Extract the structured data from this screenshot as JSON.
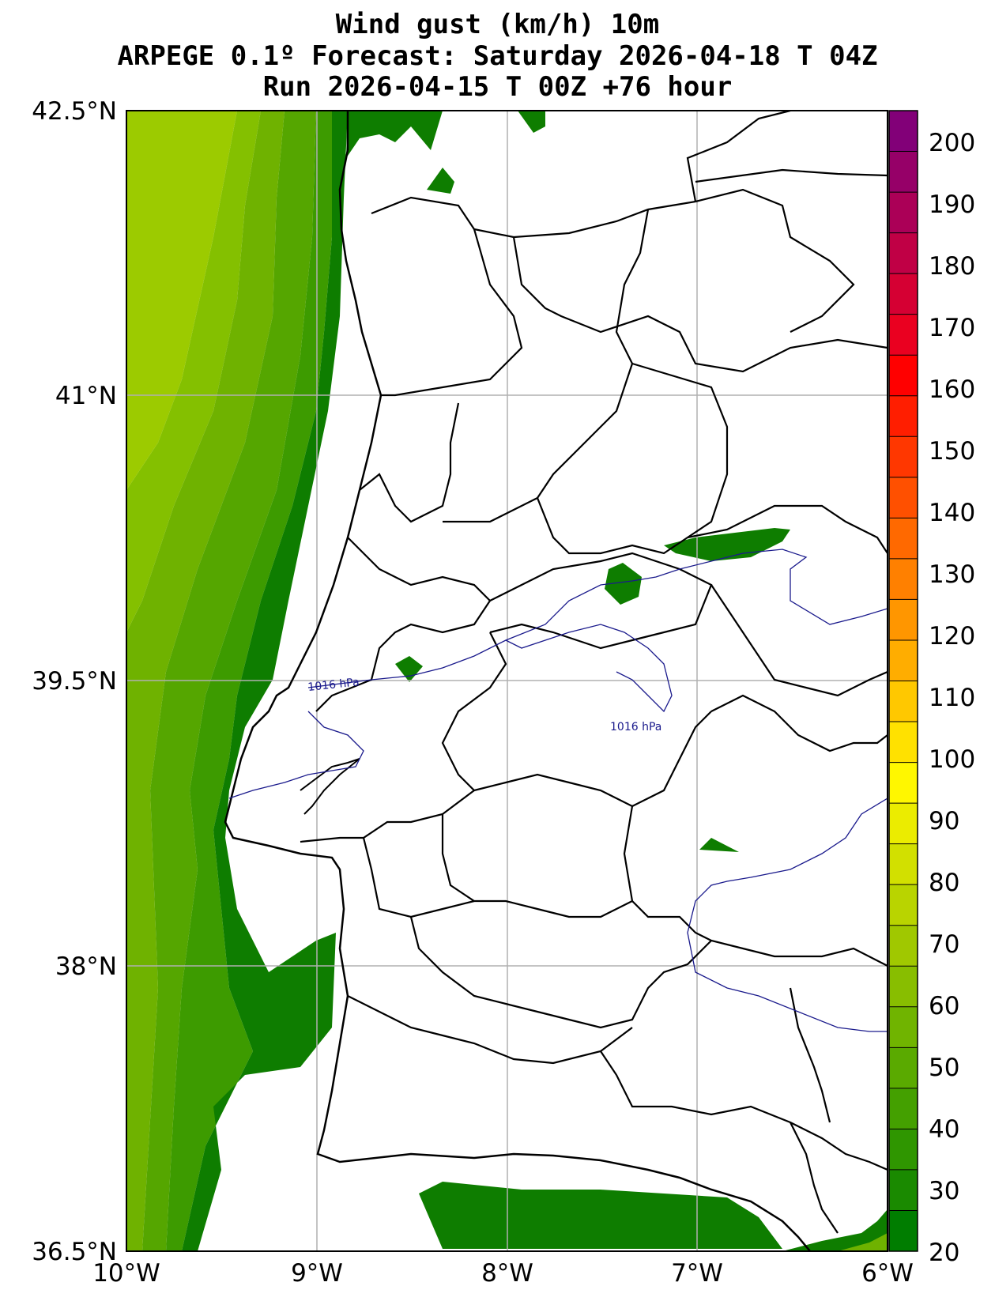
{
  "title": {
    "line1": "Wind gust (km/h) 10m",
    "line2": "ARPEGE 0.1º Forecast: Saturday 2026-04-18 T 04Z",
    "line3": "Run 2026-04-15 T 00Z +76 hour"
  },
  "axes": {
    "lon_labels": [
      "10°W",
      "9°W",
      "8°W",
      "7°W",
      "6°W"
    ],
    "lat_labels": [
      "42.5°N",
      "41°N",
      "39.5°N",
      "38°N",
      "36.5°N"
    ],
    "grid": true
  },
  "colorbar": {
    "ticks": [
      "200",
      "190",
      "180",
      "170",
      "160",
      "150",
      "140",
      "130",
      "120",
      "110",
      "100",
      "90",
      "80",
      "70",
      "60",
      "50",
      "40",
      "30",
      "20"
    ],
    "colors": [
      "#007d00",
      "#1a8a00",
      "#2f9600",
      "#44a000",
      "#5aaa00",
      "#70b400",
      "#88be00",
      "#a0c800",
      "#b9d400",
      "#d2e000",
      "#ebec00",
      "#fff700",
      "#ffe100",
      "#ffc800",
      "#ffad00",
      "#ff9600",
      "#ff8000",
      "#ff6900",
      "#ff5000",
      "#ff3700",
      "#ff1e00",
      "#ff0000",
      "#ea0020",
      "#d50033",
      "#c00045",
      "#ab0057",
      "#960068",
      "#820078"
    ]
  },
  "isobar_labels": [
    "1016 hPa",
    "1016 hPa"
  ],
  "colors": {
    "coast_line": "#000000",
    "isobar": "#1a1a8c",
    "grid": "#b0b0b0",
    "ocean_dark": "#0e7d00",
    "ocean_mid": "#3d9b00",
    "ocean_light": "#6fb200",
    "ocean_lighter": "#9ccb00"
  }
}
